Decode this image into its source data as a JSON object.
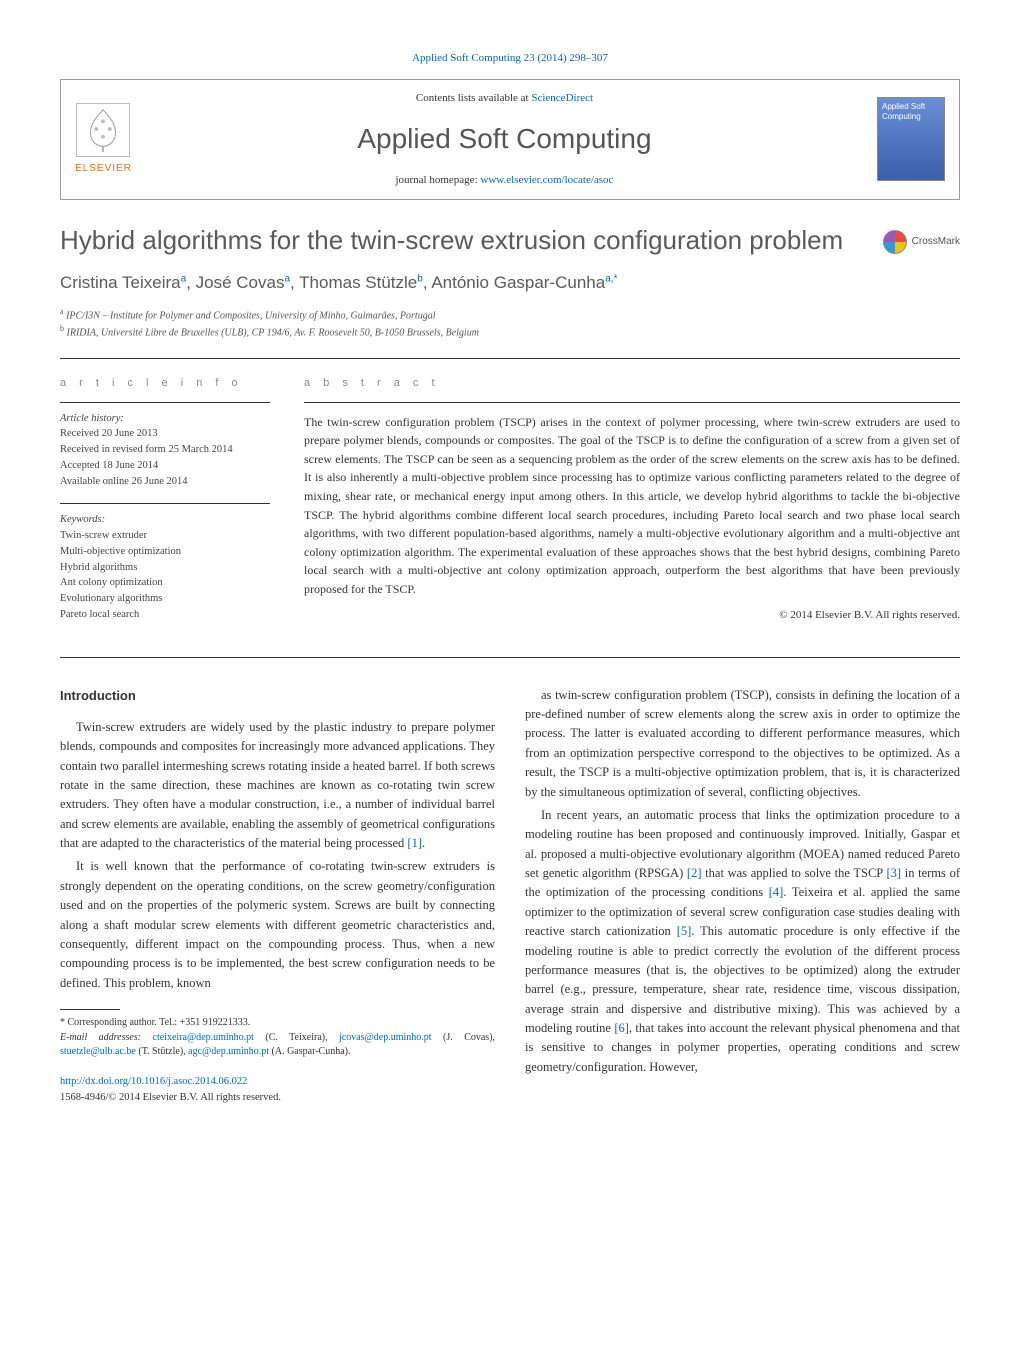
{
  "journal": {
    "header_ref": "Applied Soft Computing 23 (2014) 298–307",
    "contents_prefix": "Contents lists available at ",
    "contents_link": "ScienceDirect",
    "name": "Applied Soft Computing",
    "homepage_prefix": "journal homepage: ",
    "homepage_url": "www.elsevier.com/locate/asoc",
    "publisher": "ELSEVIER",
    "cover_text": "Applied Soft Computing"
  },
  "crossmark": {
    "label": "CrossMark"
  },
  "article": {
    "title": "Hybrid algorithms for the twin-screw extrusion configuration problem",
    "authors_html": "Cristina Teixeira",
    "authors": [
      {
        "name": "Cristina Teixeira",
        "sup": "a"
      },
      {
        "name": "José Covas",
        "sup": "a"
      },
      {
        "name": "Thomas Stützle",
        "sup": "b"
      },
      {
        "name": "António Gaspar-Cunha",
        "sup": "a,*"
      }
    ],
    "affiliations": [
      {
        "sup": "a",
        "text": "IPC/I3N – Institute for Polymer and Composites, University of Minho, Guimarães, Portugal"
      },
      {
        "sup": "b",
        "text": "IRIDIA, Université Libre de Bruxelles (ULB), CP 194/6, Av. F. Roosevelt 50, B-1050 Brussels, Belgium"
      }
    ]
  },
  "info": {
    "heading": "a r t i c l e   i n f o",
    "history_label": "Article history:",
    "history": [
      "Received 20 June 2013",
      "Received in revised form 25 March 2014",
      "Accepted 18 June 2014",
      "Available online 26 June 2014"
    ],
    "keywords_label": "Keywords:",
    "keywords": [
      "Twin-screw extruder",
      "Multi-objective optimization",
      "Hybrid algorithms",
      "Ant colony optimization",
      "Evolutionary algorithms",
      "Pareto local search"
    ]
  },
  "abstract": {
    "heading": "a b s t r a c t",
    "text": "The twin-screw configuration problem (TSCP) arises in the context of polymer processing, where twin-screw extruders are used to prepare polymer blends, compounds or composites. The goal of the TSCP is to define the configuration of a screw from a given set of screw elements. The TSCP can be seen as a sequencing problem as the order of the screw elements on the screw axis has to be defined. It is also inherently a multi-objective problem since processing has to optimize various conflicting parameters related to the degree of mixing, shear rate, or mechanical energy input among others. In this article, we develop hybrid algorithms to tackle the bi-objective TSCP. The hybrid algorithms combine different local search procedures, including Pareto local search and two phase local search algorithms, with two different population-based algorithms, namely a multi-objective evolutionary algorithm and a multi-objective ant colony optimization algorithm. The experimental evaluation of these approaches shows that the best hybrid designs, combining Pareto local search with a multi-objective ant colony optimization approach, outperform the best algorithms that have been previously proposed for the TSCP.",
    "copyright": "© 2014 Elsevier B.V. All rights reserved."
  },
  "body": {
    "intro_heading": "Introduction",
    "left_paras": [
      "Twin-screw extruders are widely used by the plastic industry to prepare polymer blends, compounds and composites for increasingly more advanced applications. They contain two parallel intermeshing screws rotating inside a heated barrel. If both screws rotate in the same direction, these machines are known as co-rotating twin screw extruders. They often have a modular construction, i.e., a number of individual barrel and screw elements are available, enabling the assembly of geometrical configurations that are adapted to the characteristics of the material being processed [1].",
      "It is well known that the performance of co-rotating twin-screw extruders is strongly dependent on the operating conditions, on the screw geometry/configuration used and on the properties of the polymeric system. Screws are built by connecting along a shaft modular screw elements with different geometric characteristics and, consequently, different impact on the compounding process. Thus, when a new compounding process is to be implemented, the best screw configuration needs to be defined. This problem, known"
    ],
    "right_paras": [
      "as twin-screw configuration problem (TSCP), consists in defining the location of a pre-defined number of screw elements along the screw axis in order to optimize the process. The latter is evaluated according to different performance measures, which from an optimization perspective correspond to the objectives to be optimized. As a result, the TSCP is a multi-objective optimization problem, that is, it is characterized by the simultaneous optimization of several, conflicting objectives.",
      "In recent years, an automatic process that links the optimization procedure to a modeling routine has been proposed and continuously improved. Initially, Gaspar et al. proposed a multi-objective evolutionary algorithm (MOEA) named reduced Pareto set genetic algorithm (RPSGA) [2] that was applied to solve the TSCP [3] in terms of the optimization of the processing conditions [4]. Teixeira et al. applied the same optimizer to the optimization of several screw configuration case studies dealing with reactive starch cationization [5]. This automatic procedure is only effective if the modeling routine is able to predict correctly the evolution of the different process performance measures (that is, the objectives to be optimized) along the extruder barrel (e.g., pressure, temperature, shear rate, residence time, viscous dissipation, average strain and dispersive and distributive mixing). This was achieved by a modeling routine [6], that takes into account the relevant physical phenomena and that is sensitive to changes in polymer properties, operating conditions and screw geometry/configuration. However,"
    ]
  },
  "footnotes": {
    "corr_label": "* Corresponding author. Tel.: +351 919221333.",
    "email_label": "E-mail addresses:",
    "emails": [
      {
        "addr": "cteixeira@dep.uminho.pt",
        "who": "(C. Teixeira)"
      },
      {
        "addr": "jcovas@dep.uminho.pt",
        "who": "(J. Covas)"
      },
      {
        "addr": "stuetzle@ulb.ac.be",
        "who": "(T. Stützle)"
      },
      {
        "addr": "agc@dep.uminho.pt",
        "who": "(A. Gaspar-Cunha)."
      }
    ]
  },
  "doi": {
    "url": "http://dx.doi.org/10.1016/j.asoc.2014.06.022",
    "line2": "1568-4946/© 2014 Elsevier B.V. All rights reserved."
  },
  "colors": {
    "link": "#0066cc",
    "elsevier_orange": "#ff6600",
    "text": "#333333",
    "heading_gray": "#5a5a5a"
  }
}
